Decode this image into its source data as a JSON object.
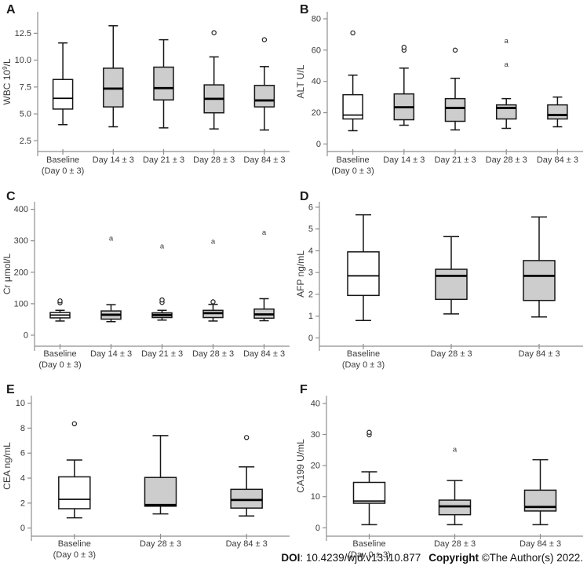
{
  "style": {
    "box_gray": "#cdcdcd",
    "box_white": "#ffffff",
    "box_stroke": "#161616",
    "median_color": "#000000",
    "axis_color": "#8f8f8f",
    "text_color": "#3a3a3a",
    "letter_color": "#1a1a1a"
  },
  "footer": {
    "doi_label": "DOI",
    "doi_text": ": 10.4239/wjd.v13.i10.877",
    "copyright_label": "Copyright",
    "copyright_text": " ©The Author(s) 2022."
  },
  "chart_data": [
    {
      "id": "A",
      "type": "box",
      "ylabel": "WBC 10^9/L",
      "ylim": [
        1.5,
        14.5
      ],
      "yticks": [
        2.5,
        5.0,
        7.5,
        10.0,
        12.5
      ],
      "ytick_labels": [
        "2.5",
        "5.0",
        "7.5",
        "10.0",
        "12.5"
      ],
      "categories": [
        [
          "Baseline",
          "(Day 0 ± 3)"
        ],
        [
          "Day 14 ± 3"
        ],
        [
          "Day 21 ± 3"
        ],
        [
          "Day 28 ± 3"
        ],
        [
          "Day 84 ± 3"
        ]
      ],
      "boxes": [
        {
          "low": 4.0,
          "q1": 5.45,
          "median": 6.45,
          "q3": 8.2,
          "high": 11.6,
          "fill": "white",
          "outliers": []
        },
        {
          "low": 3.8,
          "q1": 5.65,
          "median": 7.35,
          "q3": 9.25,
          "high": 13.2,
          "fill": "gray",
          "outliers": []
        },
        {
          "low": 3.7,
          "q1": 6.3,
          "median": 7.4,
          "q3": 9.35,
          "high": 11.9,
          "fill": "gray",
          "outliers": []
        },
        {
          "low": 3.6,
          "q1": 5.1,
          "median": 6.4,
          "q3": 7.7,
          "high": 10.3,
          "fill": "gray",
          "outliers": [
            {
              "v": 12.55,
              "mark": "circle"
            }
          ]
        },
        {
          "low": 3.5,
          "q1": 5.65,
          "median": 6.25,
          "q3": 7.65,
          "high": 9.4,
          "fill": "gray",
          "outliers": [
            {
              "v": 11.9,
              "mark": "circle"
            }
          ]
        }
      ]
    },
    {
      "id": "B",
      "type": "box",
      "ylabel": "ALT U/L",
      "ylim": [
        -4.8,
        84.5
      ],
      "yticks": [
        0,
        20,
        40,
        60,
        80
      ],
      "ytick_labels": [
        "0",
        "20",
        "40",
        "60",
        "80"
      ],
      "categories": [
        [
          "Baseline",
          "(Day 0 ± 3)"
        ],
        [
          "Day 14 ± 3"
        ],
        [
          "Day 21 ± 3"
        ],
        [
          "Day 28 ± 3"
        ],
        [
          "Day 84 ± 3"
        ]
      ],
      "boxes": [
        {
          "low": 8.5,
          "q1": 16,
          "median": 18.5,
          "q3": 31.5,
          "high": 44,
          "fill": "white",
          "outliers": [
            {
              "v": 71,
              "mark": "circle"
            }
          ]
        },
        {
          "low": 12,
          "q1": 15.5,
          "median": 23.5,
          "q3": 32,
          "high": 48.5,
          "fill": "gray",
          "outliers": [
            {
              "v": 60,
              "mark": "circle"
            },
            {
              "v": 61.8,
              "mark": "circle"
            }
          ]
        },
        {
          "low": 9,
          "q1": 14.5,
          "median": 23,
          "q3": 29,
          "high": 42,
          "fill": "gray",
          "outliers": [
            {
              "v": 60,
              "mark": "circle"
            }
          ]
        },
        {
          "low": 10,
          "q1": 16,
          "median": 23,
          "q3": 25,
          "high": 29,
          "fill": "gray",
          "outliers": [
            {
              "v": 51,
              "mark": "a"
            },
            {
              "v": 66,
              "mark": "a"
            }
          ]
        },
        {
          "low": 11,
          "q1": 16,
          "median": 18.5,
          "q3": 25,
          "high": 30,
          "fill": "gray",
          "outliers": []
        }
      ]
    },
    {
      "id": "C",
      "type": "box",
      "ylabel": "Cr μmol/L",
      "ylim": [
        -35,
        424
      ],
      "yticks": [
        0,
        100,
        200,
        300,
        400
      ],
      "ytick_labels": [
        "0",
        "100",
        "200",
        "300",
        "400"
      ],
      "categories": [
        [
          "Baseline",
          "(Day 0 ± 3)"
        ],
        [
          "Day 14 ± 3"
        ],
        [
          "Day 21 ± 3"
        ],
        [
          "Day 28 ± 3"
        ],
        [
          "Day 84 ± 3"
        ]
      ],
      "boxes": [
        {
          "low": 45,
          "q1": 55,
          "median": 64,
          "q3": 72,
          "high": 79,
          "fill": "white",
          "outliers": [
            {
              "v": 103,
              "mark": "circle"
            },
            {
              "v": 109,
              "mark": "circle"
            }
          ]
        },
        {
          "low": 43,
          "q1": 51,
          "median": 65,
          "q3": 77,
          "high": 97,
          "fill": "gray",
          "outliers": [
            {
              "v": 308,
              "mark": "a"
            }
          ]
        },
        {
          "low": 48,
          "q1": 56,
          "median": 64,
          "q3": 71,
          "high": 79,
          "fill": "gray",
          "outliers": [
            {
              "v": 104,
              "mark": "circle"
            },
            {
              "v": 112,
              "mark": "circle"
            },
            {
              "v": 283,
              "mark": "a"
            }
          ]
        },
        {
          "low": 45,
          "q1": 56,
          "median": 70,
          "q3": 79,
          "high": 98,
          "fill": "gray",
          "outliers": [
            {
              "v": 106,
              "mark": "circle"
            },
            {
              "v": 298,
              "mark": "a"
            }
          ]
        },
        {
          "low": 46,
          "q1": 54,
          "median": 66,
          "q3": 83,
          "high": 116,
          "fill": "gray",
          "outliers": [
            {
              "v": 327,
              "mark": "a"
            }
          ]
        }
      ]
    },
    {
      "id": "D",
      "type": "box",
      "ylabel": "AFP ng/mL",
      "ylim": [
        -0.38,
        6.25
      ],
      "yticks": [
        0,
        1,
        2,
        3,
        4,
        5,
        6
      ],
      "ytick_labels": [
        "0",
        "1",
        "2",
        "3",
        "4",
        "5",
        "6"
      ],
      "categories": [
        [
          "Baseline",
          "(Day 0 ± 3)"
        ],
        [
          "Day 28 ± 3"
        ],
        [
          "Day 84 ± 3"
        ]
      ],
      "boxes": [
        {
          "low": 0.8,
          "q1": 1.95,
          "median": 2.85,
          "q3": 3.95,
          "high": 5.65,
          "fill": "white",
          "outliers": []
        },
        {
          "low": 1.1,
          "q1": 1.77,
          "median": 2.85,
          "q3": 3.15,
          "high": 4.65,
          "fill": "gray",
          "outliers": []
        },
        {
          "low": 0.96,
          "q1": 1.72,
          "median": 2.85,
          "q3": 3.55,
          "high": 5.55,
          "fill": "gray",
          "outliers": []
        }
      ]
    },
    {
      "id": "E",
      "type": "box",
      "ylabel": "CEA ng/mL",
      "ylim": [
        -0.65,
        10.6
      ],
      "yticks": [
        0,
        2,
        4,
        6,
        8,
        10
      ],
      "ytick_labels": [
        "0",
        "2",
        "4",
        "6",
        "8",
        "10"
      ],
      "categories": [
        [
          "Baseline",
          "(Day 0 ± 3)"
        ],
        [
          "Day 28 ± 3"
        ],
        [
          "Day 84 ± 3"
        ]
      ],
      "boxes": [
        {
          "low": 0.82,
          "q1": 1.55,
          "median": 2.3,
          "q3": 4.1,
          "high": 5.45,
          "fill": "white",
          "outliers": [
            {
              "v": 8.35,
              "mark": "circle"
            }
          ]
        },
        {
          "low": 1.13,
          "q1": 1.75,
          "median": 1.85,
          "q3": 4.05,
          "high": 7.4,
          "fill": "gray",
          "outliers": []
        },
        {
          "low": 0.97,
          "q1": 1.6,
          "median": 2.25,
          "q3": 3.1,
          "high": 4.9,
          "fill": "gray",
          "outliers": [
            {
              "v": 7.25,
              "mark": "circle"
            }
          ]
        }
      ]
    },
    {
      "id": "F",
      "type": "box",
      "ylabel": "CA199 U/mL",
      "ylim": [
        -2.7,
        42.5
      ],
      "yticks": [
        0,
        10,
        20,
        30,
        40
      ],
      "ytick_labels": [
        "0",
        "10",
        "20",
        "30",
        "40"
      ],
      "categories": [
        [
          "Baseline",
          "(Day 0 ± 3)"
        ],
        [
          "Day 28 ± 3"
        ],
        [
          "Day 84 ± 3"
        ]
      ],
      "boxes": [
        {
          "low": 1.0,
          "q1": 7.9,
          "median": 8.6,
          "q3": 14.6,
          "high": 18.0,
          "fill": "white",
          "outliers": [
            {
              "v": 29.9,
              "mark": "circle"
            },
            {
              "v": 30.7,
              "mark": "circle"
            }
          ]
        },
        {
          "low": 1.0,
          "q1": 4.2,
          "median": 6.9,
          "q3": 8.9,
          "high": 15.2,
          "fill": "gray",
          "outliers": [
            {
              "v": 25.2,
              "mark": "a"
            }
          ]
        },
        {
          "low": 1.0,
          "q1": 5.4,
          "median": 6.7,
          "q3": 12.1,
          "high": 21.9,
          "fill": "gray",
          "outliers": []
        }
      ]
    }
  ]
}
